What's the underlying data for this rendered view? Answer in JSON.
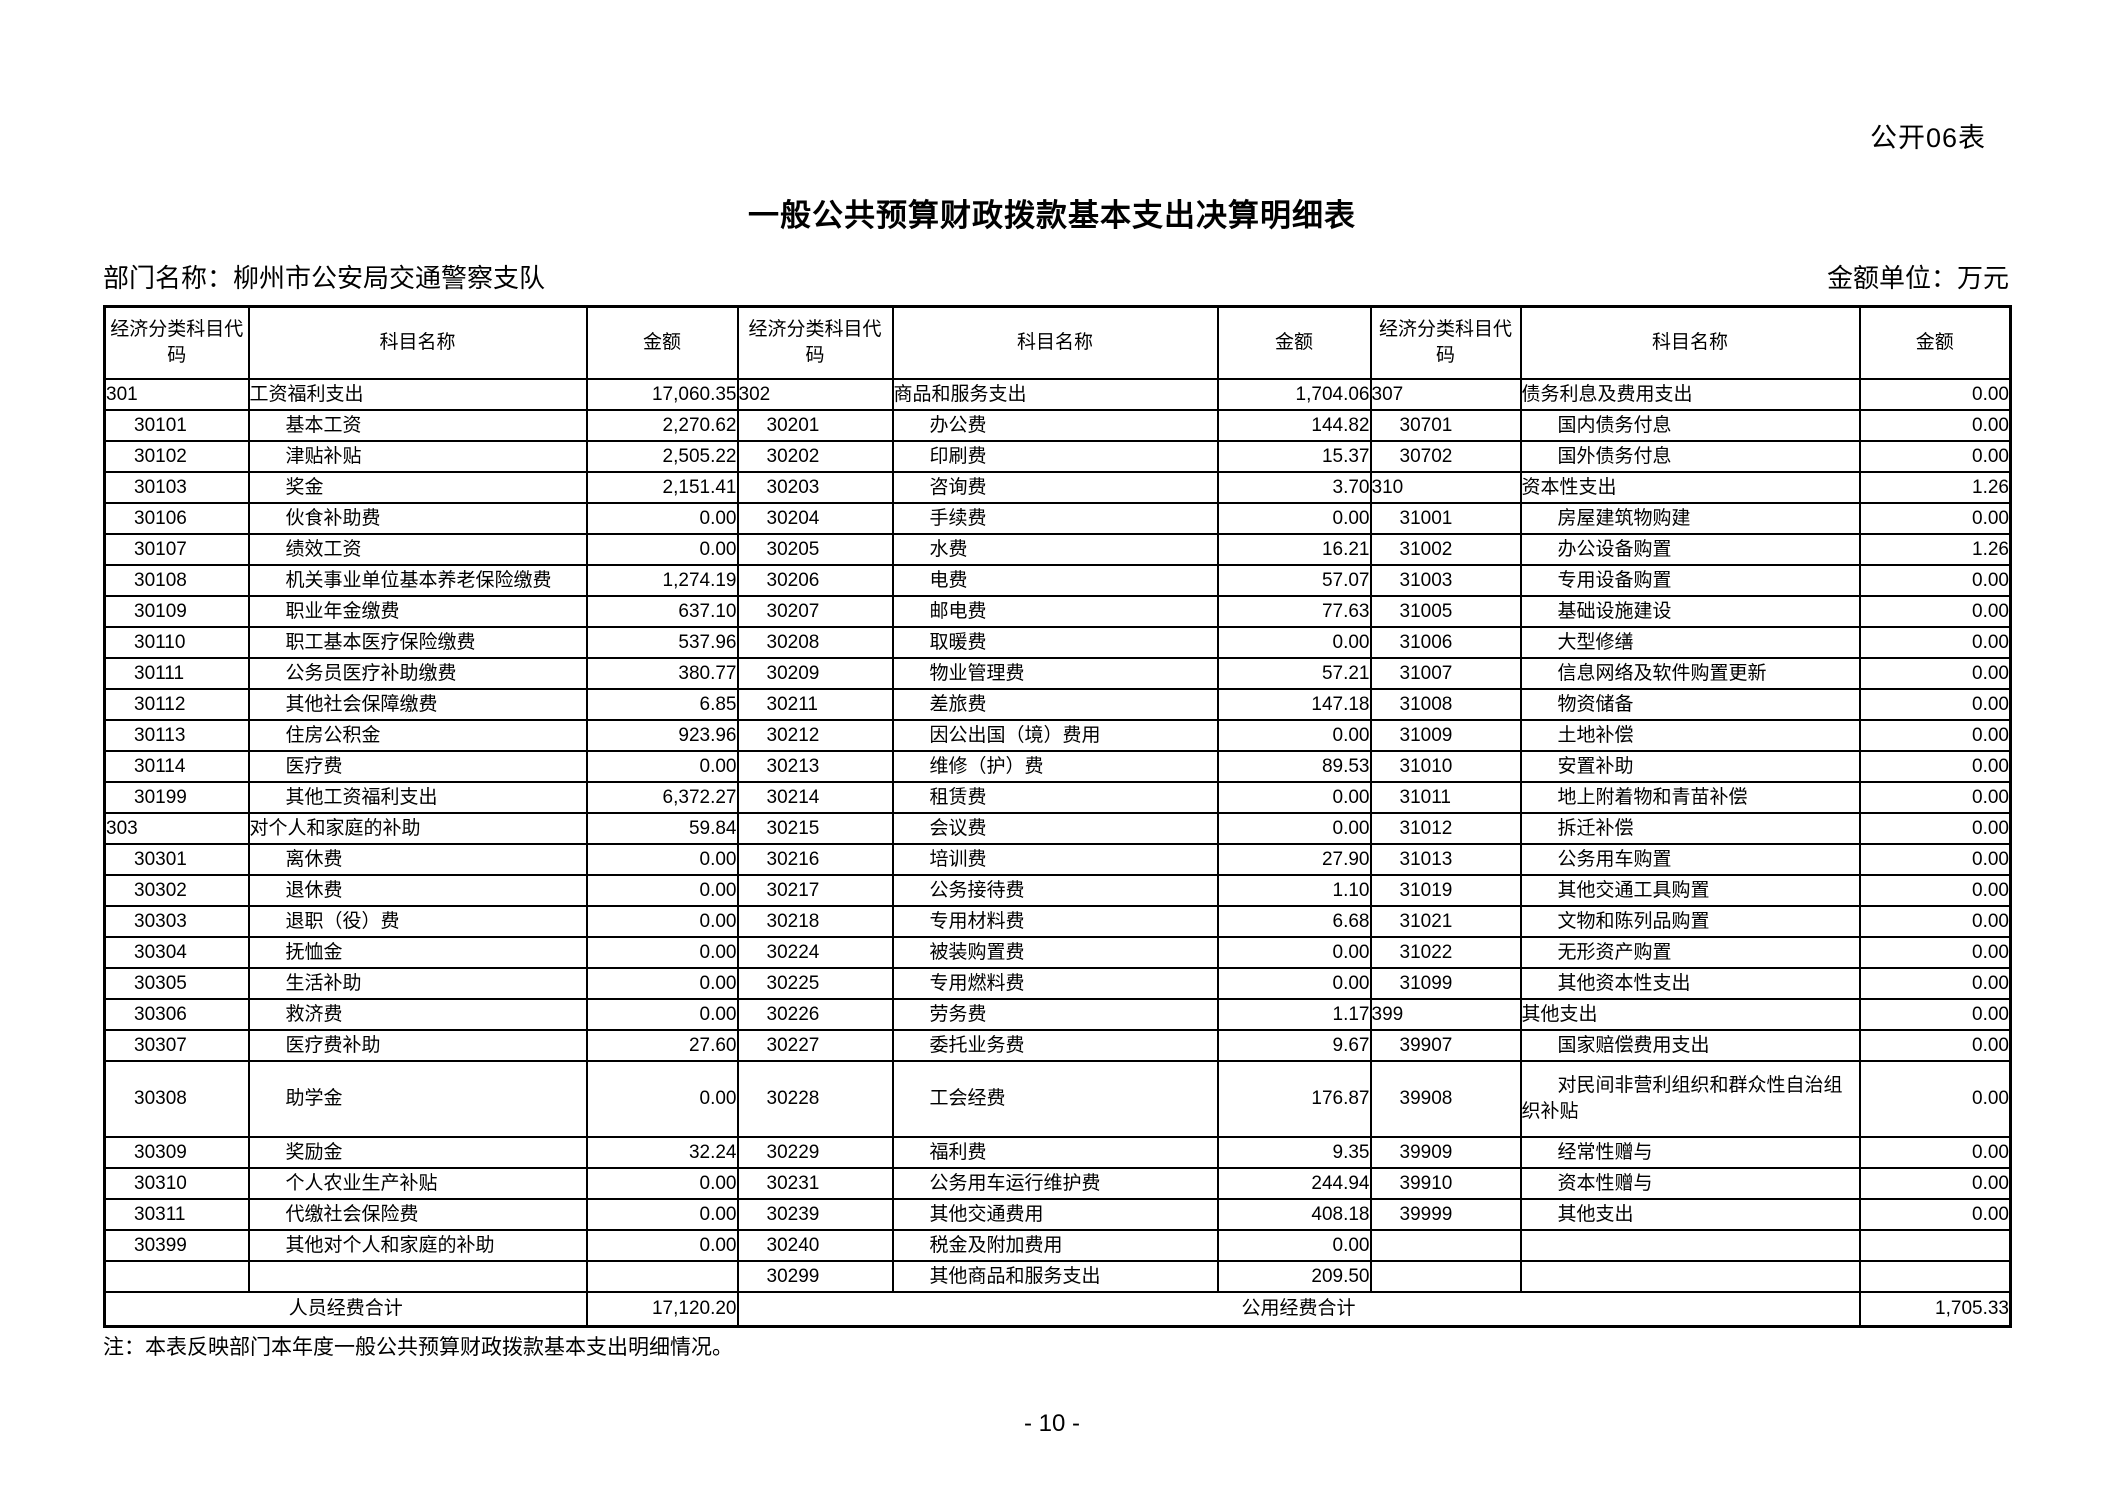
{
  "page": {
    "form_label": "公开06表",
    "title": "一般公共预算财政拨款基本支出决算明细表",
    "department_label": "部门名称：柳州市公安局交通警察支队",
    "unit_label": "金额单位：万元",
    "note": "注：本表反映部门本年度一般公共预算财政拨款基本支出明细情况。",
    "page_number": "- 10 -"
  },
  "table": {
    "header": {
      "code": "经济分类科目代码",
      "name": "科目名称",
      "amount": "金额"
    },
    "rows": [
      {
        "tall": false,
        "cells": [
          {
            "code": "301",
            "name": "工资福利支出",
            "amount": "17,060.35"
          },
          {
            "code": "302",
            "name": "商品和服务支出",
            "amount": "1,704.06"
          },
          {
            "code": "307",
            "name": "债务利息及费用支出",
            "amount": "0.00"
          }
        ]
      },
      {
        "tall": false,
        "cells": [
          {
            "code": "30101",
            "name": "基本工资",
            "amount": "2,270.62"
          },
          {
            "code": "30201",
            "name": "办公费",
            "amount": "144.82"
          },
          {
            "code": "30701",
            "name": "国内债务付息",
            "amount": "0.00"
          }
        ]
      },
      {
        "tall": false,
        "cells": [
          {
            "code": "30102",
            "name": "津贴补贴",
            "amount": "2,505.22"
          },
          {
            "code": "30202",
            "name": "印刷费",
            "amount": "15.37"
          },
          {
            "code": "30702",
            "name": "国外债务付息",
            "amount": "0.00"
          }
        ]
      },
      {
        "tall": false,
        "cells": [
          {
            "code": "30103",
            "name": "奖金",
            "amount": "2,151.41"
          },
          {
            "code": "30203",
            "name": "咨询费",
            "amount": "3.70"
          },
          {
            "code": "310",
            "name": "资本性支出",
            "amount": "1.26"
          }
        ]
      },
      {
        "tall": false,
        "cells": [
          {
            "code": "30106",
            "name": "伙食补助费",
            "amount": "0.00"
          },
          {
            "code": "30204",
            "name": "手续费",
            "amount": "0.00"
          },
          {
            "code": "31001",
            "name": "房屋建筑物购建",
            "amount": "0.00"
          }
        ]
      },
      {
        "tall": false,
        "cells": [
          {
            "code": "30107",
            "name": "绩效工资",
            "amount": "0.00"
          },
          {
            "code": "30205",
            "name": "水费",
            "amount": "16.21"
          },
          {
            "code": "31002",
            "name": "办公设备购置",
            "amount": "1.26"
          }
        ]
      },
      {
        "tall": false,
        "cells": [
          {
            "code": "30108",
            "name": "机关事业单位基本养老保险缴费",
            "amount": "1,274.19"
          },
          {
            "code": "30206",
            "name": "电费",
            "amount": "57.07"
          },
          {
            "code": "31003",
            "name": "专用设备购置",
            "amount": "0.00"
          }
        ]
      },
      {
        "tall": false,
        "cells": [
          {
            "code": "30109",
            "name": "职业年金缴费",
            "amount": "637.10"
          },
          {
            "code": "30207",
            "name": "邮电费",
            "amount": "77.63"
          },
          {
            "code": "31005",
            "name": "基础设施建设",
            "amount": "0.00"
          }
        ]
      },
      {
        "tall": false,
        "cells": [
          {
            "code": "30110",
            "name": "职工基本医疗保险缴费",
            "amount": "537.96"
          },
          {
            "code": "30208",
            "name": "取暖费",
            "amount": "0.00"
          },
          {
            "code": "31006",
            "name": "大型修缮",
            "amount": "0.00"
          }
        ]
      },
      {
        "tall": false,
        "cells": [
          {
            "code": "30111",
            "name": "公务员医疗补助缴费",
            "amount": "380.77"
          },
          {
            "code": "30209",
            "name": "物业管理费",
            "amount": "57.21"
          },
          {
            "code": "31007",
            "name": "信息网络及软件购置更新",
            "amount": "0.00"
          }
        ]
      },
      {
        "tall": false,
        "cells": [
          {
            "code": "30112",
            "name": "其他社会保障缴费",
            "amount": "6.85"
          },
          {
            "code": "30211",
            "name": "差旅费",
            "amount": "147.18"
          },
          {
            "code": "31008",
            "name": "物资储备",
            "amount": "0.00"
          }
        ]
      },
      {
        "tall": false,
        "cells": [
          {
            "code": "30113",
            "name": "住房公积金",
            "amount": "923.96"
          },
          {
            "code": "30212",
            "name": "因公出国（境）费用",
            "amount": "0.00"
          },
          {
            "code": "31009",
            "name": "土地补偿",
            "amount": "0.00"
          }
        ]
      },
      {
        "tall": false,
        "cells": [
          {
            "code": "30114",
            "name": "医疗费",
            "amount": "0.00"
          },
          {
            "code": "30213",
            "name": "维修（护）费",
            "amount": "89.53"
          },
          {
            "code": "31010",
            "name": "安置补助",
            "amount": "0.00"
          }
        ]
      },
      {
        "tall": false,
        "cells": [
          {
            "code": "30199",
            "name": "其他工资福利支出",
            "amount": "6,372.27"
          },
          {
            "code": "30214",
            "name": "租赁费",
            "amount": "0.00"
          },
          {
            "code": "31011",
            "name": "地上附着物和青苗补偿",
            "amount": "0.00"
          }
        ]
      },
      {
        "tall": false,
        "cells": [
          {
            "code": "303",
            "name": "对个人和家庭的补助",
            "amount": "59.84"
          },
          {
            "code": "30215",
            "name": "会议费",
            "amount": "0.00"
          },
          {
            "code": "31012",
            "name": "拆迁补偿",
            "amount": "0.00"
          }
        ]
      },
      {
        "tall": false,
        "cells": [
          {
            "code": "30301",
            "name": "离休费",
            "amount": "0.00"
          },
          {
            "code": "30216",
            "name": "培训费",
            "amount": "27.90"
          },
          {
            "code": "31013",
            "name": "公务用车购置",
            "amount": "0.00"
          }
        ]
      },
      {
        "tall": false,
        "cells": [
          {
            "code": "30302",
            "name": "退休费",
            "amount": "0.00"
          },
          {
            "code": "30217",
            "name": "公务接待费",
            "amount": "1.10"
          },
          {
            "code": "31019",
            "name": "其他交通工具购置",
            "amount": "0.00"
          }
        ]
      },
      {
        "tall": false,
        "cells": [
          {
            "code": "30303",
            "name": "退职（役）费",
            "amount": "0.00"
          },
          {
            "code": "30218",
            "name": "专用材料费",
            "amount": "6.68"
          },
          {
            "code": "31021",
            "name": "文物和陈列品购置",
            "amount": "0.00"
          }
        ]
      },
      {
        "tall": false,
        "cells": [
          {
            "code": "30304",
            "name": "抚恤金",
            "amount": "0.00"
          },
          {
            "code": "30224",
            "name": "被装购置费",
            "amount": "0.00"
          },
          {
            "code": "31022",
            "name": "无形资产购置",
            "amount": "0.00"
          }
        ]
      },
      {
        "tall": false,
        "cells": [
          {
            "code": "30305",
            "name": "生活补助",
            "amount": "0.00"
          },
          {
            "code": "30225",
            "name": "专用燃料费",
            "amount": "0.00"
          },
          {
            "code": "31099",
            "name": "其他资本性支出",
            "amount": "0.00"
          }
        ]
      },
      {
        "tall": false,
        "cells": [
          {
            "code": "30306",
            "name": "救济费",
            "amount": "0.00"
          },
          {
            "code": "30226",
            "name": "劳务费",
            "amount": "1.17"
          },
          {
            "code": "399",
            "name": "其他支出",
            "amount": "0.00"
          }
        ]
      },
      {
        "tall": false,
        "cells": [
          {
            "code": "30307",
            "name": "医疗费补助",
            "amount": "27.60"
          },
          {
            "code": "30227",
            "name": "委托业务费",
            "amount": "9.67"
          },
          {
            "code": "39907",
            "name": "国家赔偿费用支出",
            "amount": "0.00"
          }
        ]
      },
      {
        "tall": true,
        "cells": [
          {
            "code": "30308",
            "name": "助学金",
            "amount": "0.00"
          },
          {
            "code": "30228",
            "name": "工会经费",
            "amount": "176.87"
          },
          {
            "code": "39908",
            "name": "对民间非营利组织和群众性自治组织补贴",
            "amount": "0.00"
          }
        ]
      },
      {
        "tall": false,
        "cells": [
          {
            "code": "30309",
            "name": "奖励金",
            "amount": "32.24"
          },
          {
            "code": "30229",
            "name": "福利费",
            "amount": "9.35"
          },
          {
            "code": "39909",
            "name": "经常性赠与",
            "amount": "0.00"
          }
        ]
      },
      {
        "tall": false,
        "cells": [
          {
            "code": "30310",
            "name": "个人农业生产补贴",
            "amount": "0.00"
          },
          {
            "code": "30231",
            "name": "公务用车运行维护费",
            "amount": "244.94"
          },
          {
            "code": "39910",
            "name": "资本性赠与",
            "amount": "0.00"
          }
        ]
      },
      {
        "tall": false,
        "cells": [
          {
            "code": "30311",
            "name": "代缴社会保险费",
            "amount": "0.00"
          },
          {
            "code": "30239",
            "name": "其他交通费用",
            "amount": "408.18"
          },
          {
            "code": "39999",
            "name": "其他支出",
            "amount": "0.00"
          }
        ]
      },
      {
        "tall": false,
        "cells": [
          {
            "code": "30399",
            "name": "其他对个人和家庭的补助",
            "amount": "0.00"
          },
          {
            "code": "30240",
            "name": "税金及附加费用",
            "amount": "0.00"
          },
          {
            "code": "",
            "name": "",
            "amount": ""
          }
        ]
      },
      {
        "tall": false,
        "cells": [
          {
            "code": "",
            "name": "",
            "amount": ""
          },
          {
            "code": "30299",
            "name": "其他商品和服务支出",
            "amount": "209.50"
          },
          {
            "code": "",
            "name": "",
            "amount": ""
          }
        ]
      }
    ],
    "totals": {
      "left_label": "人员经费合计",
      "left_amount": "17,120.20",
      "right_label": "公用经费合计",
      "right_amount": "1,705.33"
    }
  }
}
